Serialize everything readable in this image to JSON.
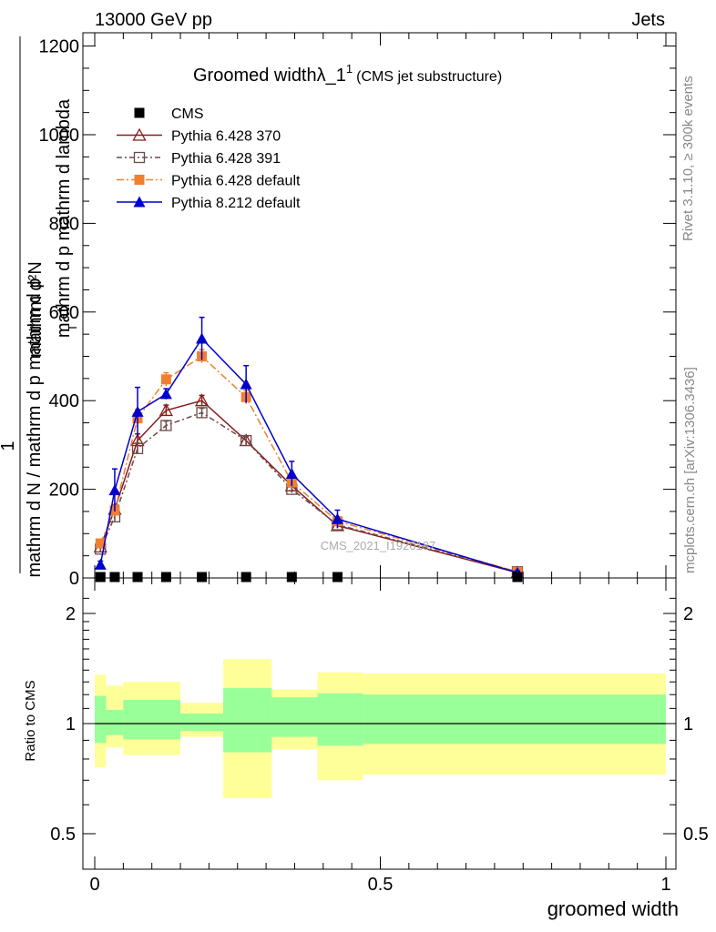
{
  "header": {
    "energy_label": "13000 GeV pp",
    "process_label": "Jets"
  },
  "side_text": {
    "rivet": "Rivet 3.1.10, ≥ 300k events",
    "mcplots": "mcplots.cern.ch [arXiv:1306.3436]"
  },
  "watermark": "CMS_2021_I1920187",
  "chart_data": [
    {
      "type": "line",
      "title": "Groomed widthλ_1",
      "title_sup": "1",
      "subtitle": "(CMS jet substructure)",
      "ylabel_numerator": "1",
      "ylabel_denominator": "mathrm d N / mathrm d p",
      "ylabel_denominator_sub": "T",
      "ylabel_numerator_rest": "mathrm d",
      "ylabel_full_top": "mathrm d",
      "ylabel_lines": [
        "mathrm d²N",
        "mathrm d p",
        "mathrm d lambda"
      ],
      "ylabel_line_sub": "T",
      "ylabel_display_num": "mathrm d²N",
      "ylabel_display_den": "mathrm d p  mathrm d lambda",
      "ylabel_display_den_sub": "T",
      "ylabel_left_num": "1",
      "ylabel_left_den": "mathrm d N / mathrm d p  mathrm d p",
      "ylim": [
        0,
        1230
      ],
      "xlim": [
        -0.0175,
        1.02
      ],
      "yticks": [
        0,
        200,
        400,
        600,
        800,
        1000,
        1200
      ],
      "ytick_labels": [
        "0",
        "200",
        "400",
        "600",
        "800",
        "1000",
        "1200"
      ],
      "legend_position": "top-left",
      "series": [
        {
          "name": "CMS",
          "color": "#000000",
          "marker": "square-filled",
          "x": [
            0.01,
            0.035,
            0.075,
            0.125,
            0.1875,
            0.265,
            0.345,
            0.425,
            0.74
          ],
          "values": [
            2,
            2,
            2,
            2,
            2,
            1,
            1,
            1,
            0
          ]
        },
        {
          "name": "Pythia 6.428 370",
          "color": "#8b1a1a",
          "marker": "triangle-open",
          "x": [
            0.01,
            0.035,
            0.075,
            0.125,
            0.1875,
            0.265,
            0.345,
            0.425,
            0.74
          ],
          "values": [
            70,
            155,
            310,
            378,
            400,
            310,
            208,
            118,
            12
          ],
          "errors": [
            8,
            10,
            15,
            12,
            12,
            10,
            8,
            6,
            2
          ]
        },
        {
          "name": "Pythia 6.428 391",
          "color": "#6b4a4a",
          "marker": "square-open",
          "x": [
            0.01,
            0.035,
            0.075,
            0.125,
            0.1875,
            0.265,
            0.345,
            0.425,
            0.74
          ],
          "values": [
            65,
            138,
            292,
            344,
            373,
            310,
            200,
            120,
            14
          ],
          "errors": [
            6,
            10,
            12,
            10,
            10,
            10,
            8,
            6,
            2
          ]
        },
        {
          "name": "Pythia 6.428 default",
          "color": "#f08030",
          "marker": "square-filled",
          "x": [
            0.01,
            0.035,
            0.075,
            0.125,
            0.1875,
            0.265,
            0.345,
            0.425,
            0.74
          ],
          "values": [
            78,
            152,
            360,
            448,
            500,
            408,
            216,
            128,
            14
          ],
          "errors": [
            8,
            12,
            20,
            15,
            15,
            15,
            10,
            8,
            2
          ]
        },
        {
          "name": "Pythia 8.212 default",
          "color": "#0000cc",
          "marker": "triangle-filled",
          "x": [
            0.01,
            0.035,
            0.075,
            0.125,
            0.1875,
            0.265,
            0.345,
            0.425,
            0.74
          ],
          "values": [
            30,
            198,
            375,
            415,
            540,
            437,
            235,
            133,
            12
          ],
          "errors": [
            8,
            48,
            55,
            12,
            48,
            42,
            28,
            20,
            4
          ]
        }
      ]
    },
    {
      "type": "area",
      "ylabel": "Ratio to CMS",
      "xlabel": "groomed width",
      "ylim": [
        0.4,
        2.3
      ],
      "yscale": "log",
      "yticks": [
        0.5,
        1,
        2
      ],
      "ytick_labels": [
        "0.5",
        "1",
        "2"
      ],
      "xticks": [
        0,
        0.5,
        1
      ],
      "xtick_labels": [
        "0",
        "0.5",
        "1"
      ],
      "reference_line": 1,
      "bins": [
        {
          "lo": 0.0,
          "hi": 0.02,
          "stat_lo": 0.885,
          "stat_hi": 1.19,
          "tot_lo": 0.76,
          "tot_hi": 1.36
        },
        {
          "lo": 0.02,
          "hi": 0.05,
          "stat_lo": 0.93,
          "stat_hi": 1.09,
          "tot_lo": 0.86,
          "tot_hi": 1.27
        },
        {
          "lo": 0.05,
          "hi": 0.15,
          "stat_lo": 0.905,
          "stat_hi": 1.16,
          "tot_lo": 0.82,
          "tot_hi": 1.3
        },
        {
          "lo": 0.15,
          "hi": 0.225,
          "stat_lo": 0.955,
          "stat_hi": 1.065,
          "tot_lo": 0.92,
          "tot_hi": 1.14
        },
        {
          "lo": 0.225,
          "hi": 0.31,
          "stat_lo": 0.835,
          "stat_hi": 1.25,
          "tot_lo": 0.625,
          "tot_hi": 1.5
        },
        {
          "lo": 0.31,
          "hi": 0.39,
          "stat_lo": 0.92,
          "stat_hi": 1.18,
          "tot_lo": 0.85,
          "tot_hi": 1.24
        },
        {
          "lo": 0.39,
          "hi": 0.47,
          "stat_lo": 0.87,
          "stat_hi": 1.21,
          "tot_lo": 0.7,
          "tot_hi": 1.38
        },
        {
          "lo": 0.47,
          "hi": 1.0,
          "stat_lo": 0.88,
          "stat_hi": 1.2,
          "tot_lo": 0.725,
          "tot_hi": 1.37
        }
      ],
      "stat_color": "#99ff99",
      "total_color": "#ffff99"
    }
  ]
}
